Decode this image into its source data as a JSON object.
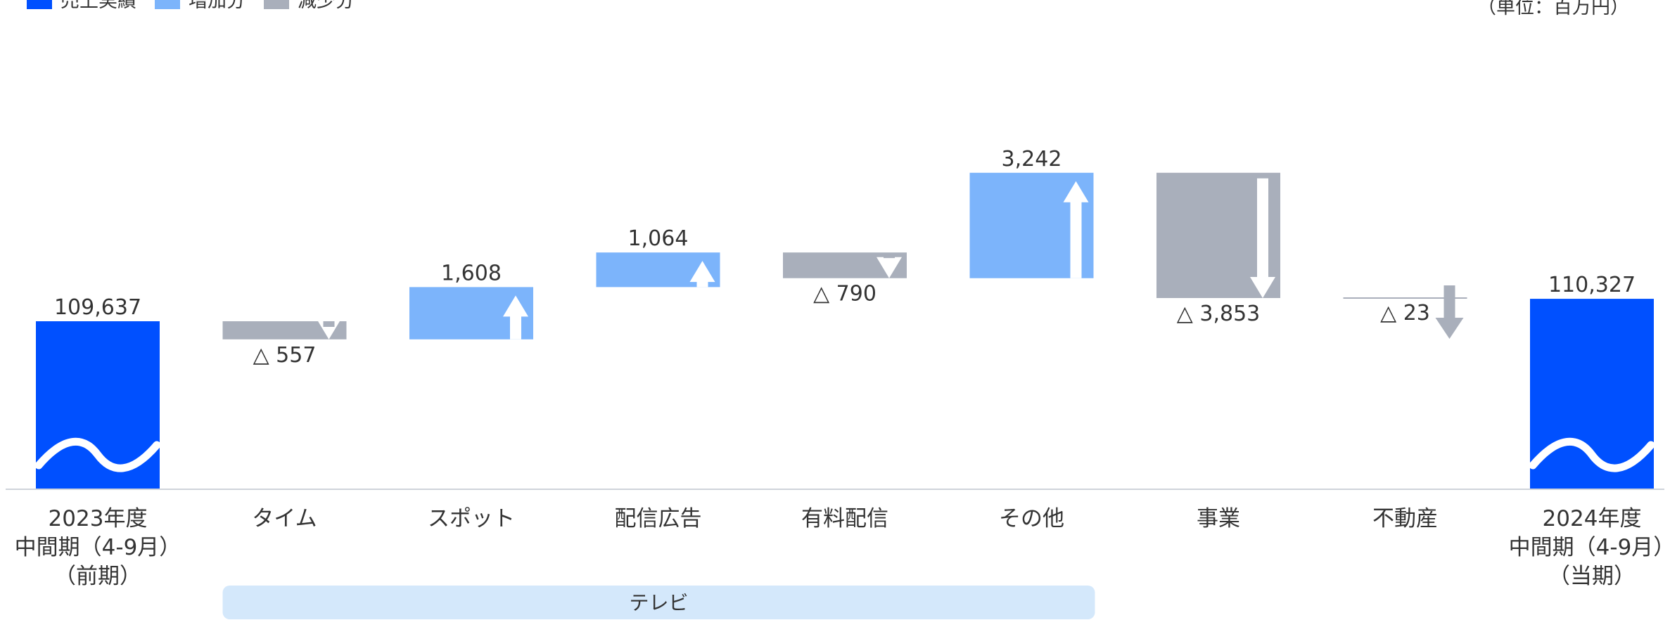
{
  "legend": [
    {
      "label": "売上実績",
      "color": "#0050ff"
    },
    {
      "label": "増加分",
      "color": "#7cb4fb"
    },
    {
      "label": "減少分",
      "color": "#a9afbb"
    }
  ],
  "unit": "（単位：百万円）",
  "group": {
    "label": "テレビ",
    "color": "#d4e8fb"
  },
  "chart_data": {
    "type": "bar",
    "variant": "waterfall",
    "title": "",
    "xlabel": "",
    "ylabel": "",
    "categories": [
      [
        "2023年度",
        "中間期（4-9月）",
        "（前期）"
      ],
      [
        "タイム"
      ],
      [
        "スポット"
      ],
      [
        "配信広告"
      ],
      [
        "有料配信"
      ],
      [
        "その他"
      ],
      [
        "事業"
      ],
      [
        "不動産"
      ],
      [
        "2024年度",
        "中間期（4-9月）",
        "（当期）"
      ]
    ],
    "values": [
      109637,
      -557,
      1608,
      1064,
      -790,
      3242,
      -3853,
      -23,
      110327
    ],
    "kinds": [
      "total",
      "change",
      "change",
      "change",
      "change",
      "change",
      "change",
      "change",
      "total"
    ],
    "labels": [
      "109,637",
      "△ 557",
      "1,608",
      "1,064",
      "△ 790",
      "3,242",
      "△ 3,853",
      "△ 23",
      "110,327"
    ],
    "axis_break": true,
    "colors": {
      "total": "#0050ff",
      "increase": "#7cb4fb",
      "decrease": "#a9afbb",
      "arrow": "#ffffff"
    }
  }
}
